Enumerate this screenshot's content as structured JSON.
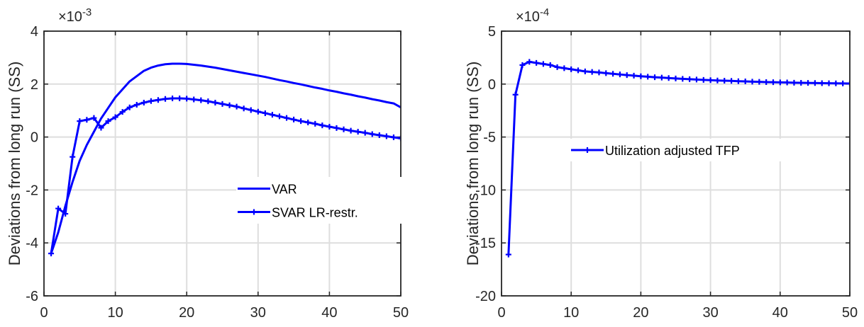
{
  "chart_data": [
    {
      "type": "line",
      "ylabel": "Deviations from long run (SS)",
      "xlabel": "",
      "title": "",
      "xlim": [
        0,
        50
      ],
      "ylim": [
        -0.006,
        0.004
      ],
      "xticks": [
        "0",
        "10",
        "20",
        "30",
        "40",
        "50"
      ],
      "yticks": [
        "-6",
        "-4",
        "-2",
        "0",
        "2",
        "4"
      ],
      "exponent_base": "×10",
      "exponent_power": "-3",
      "grid": true,
      "legend_position": "center-right",
      "series": [
        {
          "name": "VAR",
          "marker": "none",
          "color": "#0000ff",
          "x": [
            1,
            2,
            3,
            4,
            5,
            6,
            7,
            8,
            9,
            10,
            11,
            12,
            13,
            14,
            15,
            16,
            17,
            18,
            19,
            20,
            21,
            22,
            23,
            24,
            25,
            26,
            27,
            28,
            29,
            30,
            31,
            32,
            33,
            34,
            35,
            36,
            37,
            38,
            39,
            40,
            41,
            42,
            43,
            44,
            45,
            46,
            47,
            48,
            49,
            50
          ],
          "y": [
            -0.0044,
            -0.0036,
            -0.0026,
            -0.0017,
            -0.0009,
            -0.0003,
            0.0002,
            0.0007,
            0.0011,
            0.0015,
            0.0018,
            0.0021,
            0.0023,
            0.0025,
            0.00262,
            0.0027,
            0.00275,
            0.00277,
            0.00277,
            0.00276,
            0.00273,
            0.0027,
            0.00266,
            0.00262,
            0.00257,
            0.00252,
            0.00247,
            0.00242,
            0.00237,
            0.00232,
            0.00227,
            0.00221,
            0.00215,
            0.0021,
            0.00204,
            0.00199,
            0.00193,
            0.00187,
            0.00182,
            0.00176,
            0.00171,
            0.00165,
            0.0016,
            0.00154,
            0.00149,
            0.00143,
            0.00138,
            0.00132,
            0.00127,
            0.00112
          ]
        },
        {
          "name": "SVAR LR-restr.",
          "marker": "plus",
          "color": "#0000ff",
          "x": [
            1,
            2,
            3,
            4,
            5,
            6,
            7,
            8,
            9,
            10,
            11,
            12,
            13,
            14,
            15,
            16,
            17,
            18,
            19,
            20,
            21,
            22,
            23,
            24,
            25,
            26,
            27,
            28,
            29,
            30,
            31,
            32,
            33,
            34,
            35,
            36,
            37,
            38,
            39,
            40,
            41,
            42,
            43,
            44,
            45,
            46,
            47,
            48,
            49,
            50
          ],
          "y": [
            -0.0044,
            -0.0027,
            -0.0029,
            -0.00075,
            0.0006,
            0.00065,
            0.00072,
            0.00035,
            0.0006,
            0.00075,
            0.00095,
            0.00112,
            0.00122,
            0.0013,
            0.00136,
            0.0014,
            0.00144,
            0.00146,
            0.00146,
            0.00145,
            0.00142,
            0.00139,
            0.00135,
            0.0013,
            0.00125,
            0.0012,
            0.00115,
            0.00108,
            0.00102,
            0.00096,
            0.0009,
            0.00084,
            0.00078,
            0.00072,
            0.00066,
            0.0006,
            0.00055,
            0.0005,
            0.00044,
            0.00039,
            0.00034,
            0.00029,
            0.00024,
            0.0002,
            0.00016,
            0.00011,
            7e-05,
            3e-05,
            -1e-05,
            -5e-05
          ]
        }
      ]
    },
    {
      "type": "line",
      "ylabel": "Deviations from long run (SS)",
      "xlabel": "",
      "title": "",
      "xlim": [
        0,
        50
      ],
      "ylim": [
        -0.002,
        0.0005
      ],
      "xticks": [
        "0",
        "10",
        "20",
        "30",
        "40",
        "50"
      ],
      "yticks": [
        "-20",
        "-15",
        "-10",
        "-5",
        "0",
        "5"
      ],
      "exponent_base": "×10",
      "exponent_power": "-4",
      "grid": true,
      "legend_position": "center",
      "series": [
        {
          "name": "Utilization adjusted TFP",
          "marker": "plus",
          "color": "#0000ff",
          "x": [
            1,
            2,
            3,
            4,
            5,
            6,
            7,
            8,
            9,
            10,
            11,
            12,
            13,
            14,
            15,
            16,
            17,
            18,
            19,
            20,
            21,
            22,
            23,
            24,
            25,
            26,
            27,
            28,
            29,
            30,
            31,
            32,
            33,
            34,
            35,
            36,
            37,
            38,
            39,
            40,
            41,
            42,
            43,
            44,
            45,
            46,
            47,
            48,
            49,
            50
          ],
          "y": [
            -0.00161,
            -0.0001,
            0.00018,
            0.00021,
            0.0002,
            0.00019,
            0.00018,
            0.00016,
            0.00015,
            0.00014,
            0.00013,
            0.00012,
            0.000115,
            0.00011,
            0.000103,
            9.7e-05,
            9.1e-05,
            8.5e-05,
            8e-05,
            7.4e-05,
            7e-05,
            6.5e-05,
            6.1e-05,
            5.7e-05,
            5.3e-05,
            5e-05,
            4.6e-05,
            4.3e-05,
            4e-05,
            3.7e-05,
            3.4e-05,
            3.2e-05,
            3e-05,
            2.7e-05,
            2.5e-05,
            2.3e-05,
            2.1e-05,
            1.9e-05,
            1.8e-05,
            1.6e-05,
            1.5e-05,
            1.3e-05,
            1.2e-05,
            1.1e-05,
            1e-05,
            9e-06,
            8e-06,
            7e-06,
            6e-06,
            5e-06
          ]
        }
      ]
    }
  ]
}
